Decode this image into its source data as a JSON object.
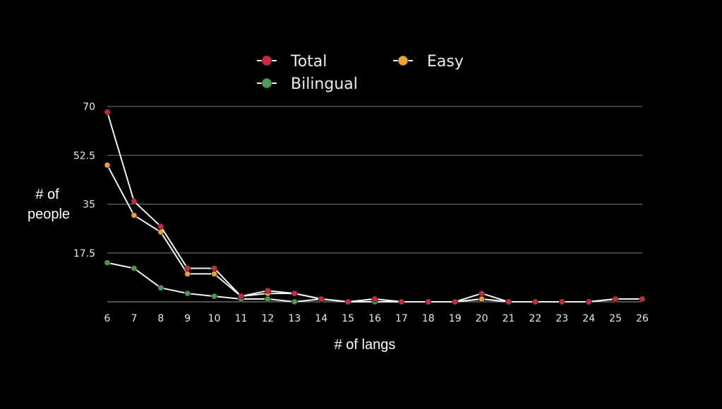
{
  "chart_data": {
    "type": "line",
    "xlabel": "# of langs",
    "ylabel_lines": [
      "# of",
      "people"
    ],
    "ylim": [
      0,
      70
    ],
    "yticks": [
      70,
      52.5,
      35,
      17.5
    ],
    "ytick_labels": [
      "70",
      "52.5",
      "35",
      "17.5"
    ],
    "grid": true,
    "legend_position": "top",
    "categories": [
      "6",
      "7",
      "8",
      "9",
      "10",
      "11",
      "12",
      "13",
      "14",
      "15",
      "16",
      "17",
      "18",
      "19",
      "20",
      "21",
      "22",
      "23",
      "24",
      "25",
      "26"
    ],
    "series": [
      {
        "name": "Total",
        "color": "#d0273f",
        "values": [
          68,
          36,
          27,
          12,
          12,
          2,
          4,
          3,
          1,
          0,
          1,
          0,
          0,
          0,
          3,
          0,
          0,
          0,
          0,
          1,
          1
        ]
      },
      {
        "name": "Easy",
        "color": "#f0a030",
        "values": [
          49,
          31,
          25,
          10,
          10,
          2,
          3,
          3,
          1,
          0,
          1,
          0,
          0,
          0,
          1,
          0,
          0,
          0,
          0,
          1,
          1
        ]
      },
      {
        "name": "Bilingual",
        "color": "#4a9a55",
        "values": [
          14,
          12,
          5,
          3,
          2,
          1,
          1,
          0,
          1,
          0,
          0,
          0,
          0,
          0,
          1,
          0,
          0,
          0,
          0,
          1,
          1
        ]
      }
    ]
  }
}
